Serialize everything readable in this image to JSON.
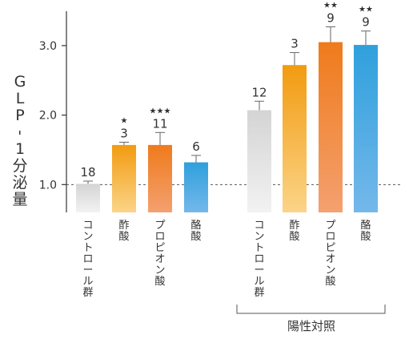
{
  "chart_data": {
    "type": "bar",
    "ylabel": "GLP-1分泌量",
    "yticks": [
      "1.0",
      "2.0",
      "3.0"
    ],
    "ylim": [
      0.6,
      3.5
    ],
    "baseline": 1.0,
    "group_label": "陽性対照",
    "bars": [
      {
        "category": "コントロール群",
        "value": 1.01,
        "error": 0.04,
        "n": "18",
        "stars": "",
        "color_top": "#d4d4d4",
        "color_bottom": "#f2f2f2"
      },
      {
        "category": "酢酸",
        "value": 1.57,
        "error": 0.04,
        "n": "3",
        "stars": "★",
        "color_top": "#f29b10",
        "color_bottom": "#fbd488"
      },
      {
        "category": "プロピオン酸",
        "value": 1.57,
        "error": 0.18,
        "n": "11",
        "stars": "★★★",
        "color_top": "#ef7b1b",
        "color_bottom": "#f4a070"
      },
      {
        "category": "酪酸",
        "value": 1.32,
        "error": 0.1,
        "n": "6",
        "stars": "",
        "color_top": "#2fa0dc",
        "color_bottom": "#74b8ea"
      },
      {
        "category": "コントロール群",
        "value": 2.07,
        "error": 0.13,
        "n": "12",
        "stars": "",
        "color_top": "#d4d4d4",
        "color_bottom": "#f2f2f2"
      },
      {
        "category": "酢酸",
        "value": 2.72,
        "error": 0.18,
        "n": "3",
        "stars": "",
        "color_top": "#f29b10",
        "color_bottom": "#fbd488"
      },
      {
        "category": "プロピオン酸",
        "value": 3.05,
        "error": 0.22,
        "n": "9",
        "stars": "★★",
        "color_top": "#ef7b1b",
        "color_bottom": "#f4a070"
      },
      {
        "category": "酪酸",
        "value": 3.01,
        "error": 0.2,
        "n": "9",
        "stars": "★★",
        "color_top": "#2fa0dc",
        "color_bottom": "#74b8ea"
      }
    ]
  }
}
